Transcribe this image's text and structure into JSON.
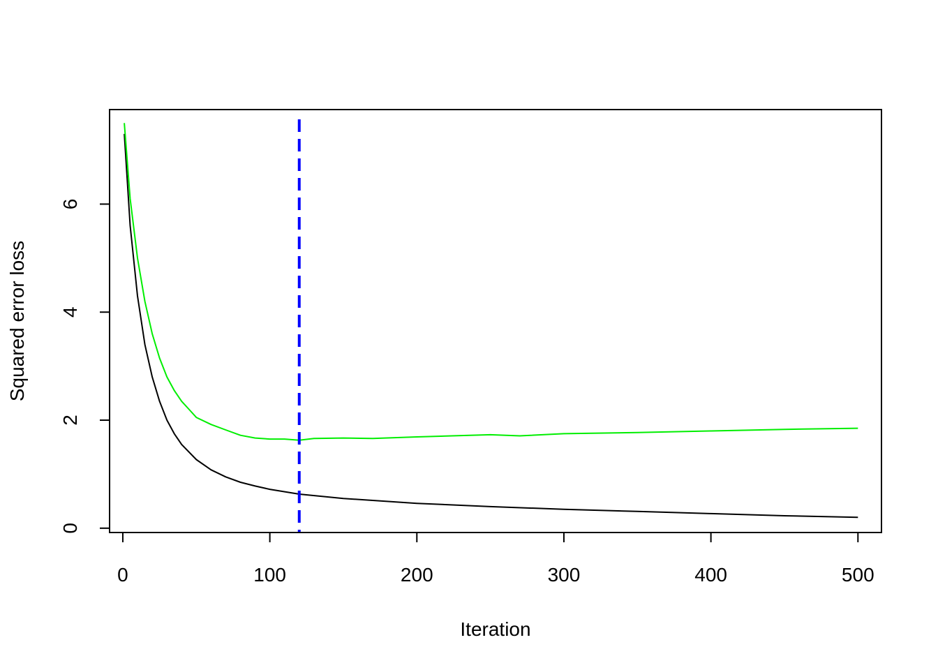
{
  "chart_data": {
    "type": "line",
    "title": "",
    "xlabel": "Iteration",
    "ylabel": "Squared error loss",
    "xlim": [
      -9,
      516
    ],
    "ylim": [
      -0.08,
      7.75
    ],
    "xticks": [
      0,
      100,
      200,
      300,
      400,
      500
    ],
    "yticks": [
      0,
      2,
      4,
      6
    ],
    "grid": false,
    "legend": "none",
    "series": [
      {
        "color": "#000000",
        "x": [
          1,
          5,
          10,
          15,
          20,
          25,
          30,
          35,
          40,
          50,
          60,
          70,
          80,
          90,
          100,
          120,
          150,
          200,
          250,
          300,
          350,
          400,
          450,
          500
        ],
        "y": [
          7.3,
          5.6,
          4.3,
          3.4,
          2.8,
          2.35,
          2.0,
          1.75,
          1.55,
          1.27,
          1.08,
          0.95,
          0.85,
          0.78,
          0.72,
          0.63,
          0.55,
          0.46,
          0.4,
          0.35,
          0.31,
          0.27,
          0.23,
          0.2
        ]
      },
      {
        "color": "#00ee00",
        "x": [
          1,
          5,
          10,
          15,
          20,
          25,
          30,
          35,
          40,
          45,
          50,
          60,
          70,
          80,
          90,
          100,
          110,
          120,
          130,
          150,
          170,
          200,
          250,
          270,
          300,
          350,
          400,
          450,
          500
        ],
        "y": [
          7.5,
          6.1,
          5.0,
          4.2,
          3.6,
          3.15,
          2.8,
          2.55,
          2.35,
          2.2,
          2.05,
          1.92,
          1.82,
          1.72,
          1.67,
          1.65,
          1.65,
          1.63,
          1.66,
          1.67,
          1.66,
          1.69,
          1.73,
          1.71,
          1.75,
          1.77,
          1.8,
          1.83,
          1.85
        ]
      }
    ],
    "vline": {
      "x": 120,
      "color": "#0000ff",
      "style": "dashed"
    }
  }
}
